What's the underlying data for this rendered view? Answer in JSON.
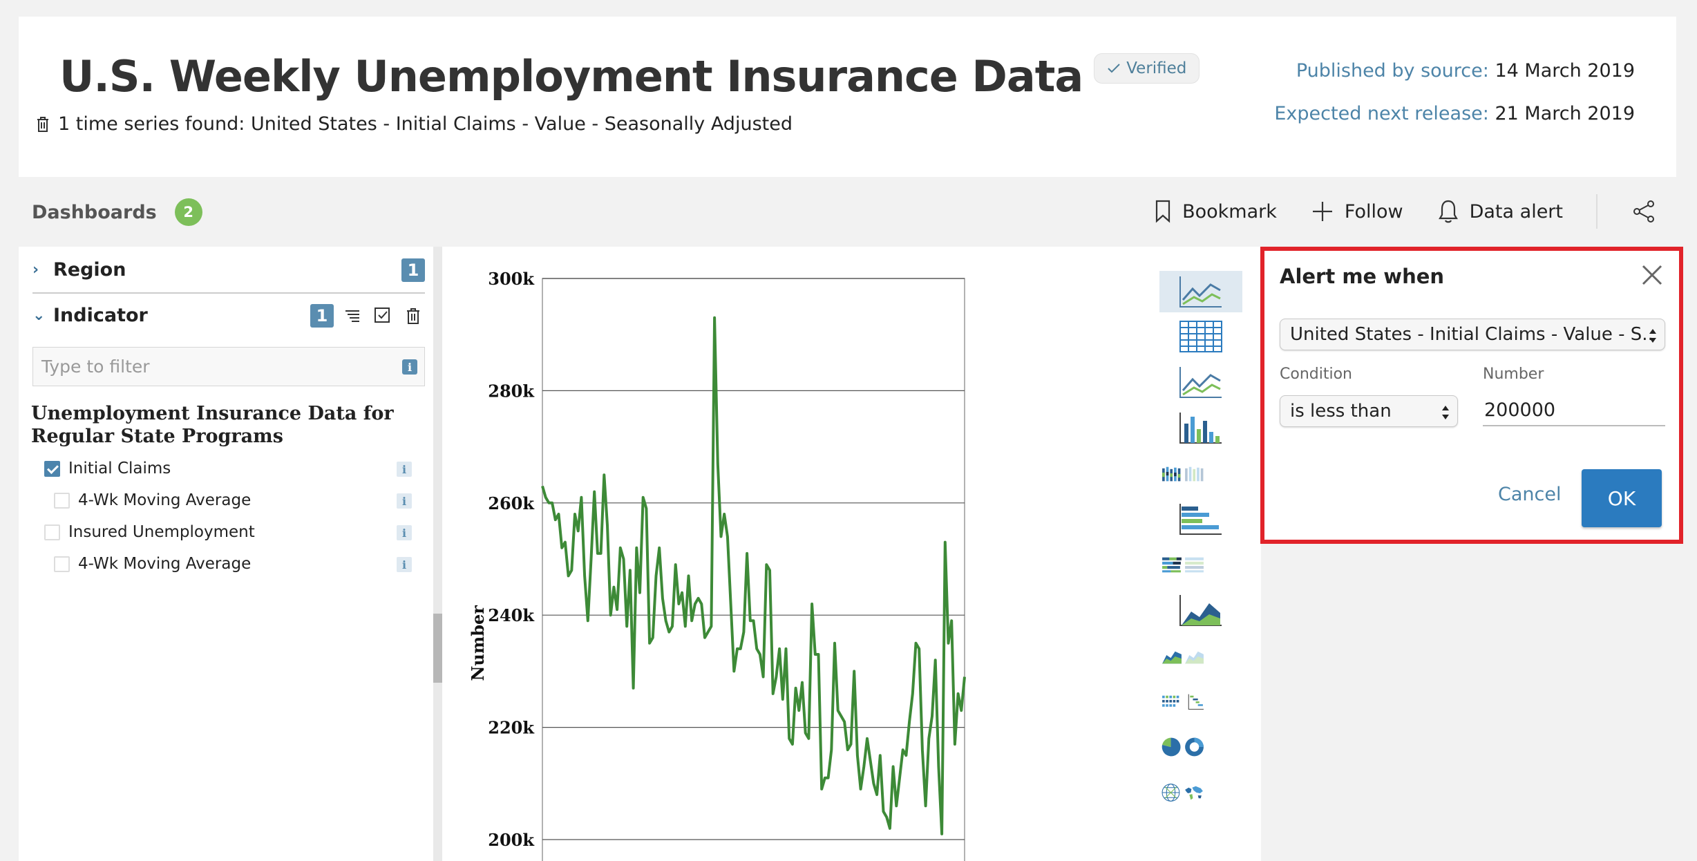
{
  "header": {
    "title": "U.S. Weekly Unemployment Insurance Data",
    "verified_label": "Verified",
    "series_found": "1 time series found: United States - Initial Claims - Value - Seasonally Adjusted",
    "published_label": "Published by source:",
    "published_value": "14 March 2019",
    "next_label": "Expected next release:",
    "next_value": "21 March 2019"
  },
  "dashboards": {
    "label": "Dashboards",
    "count": "2"
  },
  "toolbar": {
    "bookmark": "Bookmark",
    "follow": "Follow",
    "data_alert": "Data alert"
  },
  "sidebar": {
    "region_label": "Region",
    "region_count": "1",
    "indicator_label": "Indicator",
    "indicator_count": "1",
    "filter_placeholder": "Type to filter",
    "group_title": "Unemployment Insurance Data for Regular State Programs",
    "items": [
      {
        "label": "Initial Claims",
        "checked": true
      },
      {
        "label": "4-Wk Moving Average",
        "checked": false
      },
      {
        "label": "Insured Unemployment",
        "checked": false
      },
      {
        "label": "4-Wk Moving Average",
        "checked": false
      }
    ],
    "info_glyph": "i"
  },
  "colors": {
    "series": "#3d8a37",
    "accent": "#2b7bbf",
    "highlight": "#e1232a",
    "badge_green": "#7dbf5a"
  },
  "chart_data": {
    "type": "line",
    "ylabel": "Number",
    "ylim": [
      200000,
      300000
    ],
    "yticks": [
      "300k",
      "280k",
      "260k",
      "240k",
      "220k",
      "200k"
    ],
    "grid": true,
    "series": [
      {
        "values": [
          263000,
          261000,
          260000,
          260000,
          257000,
          258000,
          252000,
          253000,
          247000,
          248000,
          258000,
          255000,
          261000,
          247000,
          239000,
          250000,
          262000,
          251000,
          251000,
          265000,
          256000,
          240000,
          245000,
          241000,
          252000,
          250000,
          238000,
          248000,
          227000,
          252000,
          244000,
          261000,
          259000,
          235000,
          236000,
          247000,
          252000,
          243000,
          239000,
          237000,
          238000,
          249000,
          242000,
          244000,
          238000,
          247000,
          239000,
          242000,
          243000,
          242000,
          236000,
          237000,
          238000,
          293000,
          267000,
          254000,
          258000,
          254000,
          242000,
          230000,
          234000,
          234000,
          237000,
          251000,
          239000,
          239000,
          234000,
          233000,
          229000,
          249000,
          248000,
          226000,
          229000,
          234000,
          225000,
          234000,
          218000,
          217000,
          227000,
          223000,
          228000,
          219000,
          218000,
          242000,
          233000,
          233000,
          209000,
          211000,
          211000,
          216000,
          235000,
          223000,
          222000,
          221000,
          216000,
          217000,
          230000,
          215000,
          209000,
          213000,
          218000,
          214000,
          210000,
          208000,
          215000,
          205000,
          204000,
          202000,
          213000,
          206000,
          211000,
          216000,
          215000,
          221000,
          226000,
          235000,
          234000,
          216000,
          206000,
          218000,
          222000,
          232000,
          213000,
          201000,
          253000,
          235000,
          239000,
          217000,
          226000,
          223000,
          229000
        ]
      }
    ]
  },
  "alert": {
    "title": "Alert me when",
    "series_select": "United States - Initial Claims - Value - S..",
    "condition_label": "Condition",
    "condition_value": "is less than",
    "number_label": "Number",
    "number_value": "200000",
    "cancel": "Cancel",
    "ok": "OK"
  }
}
